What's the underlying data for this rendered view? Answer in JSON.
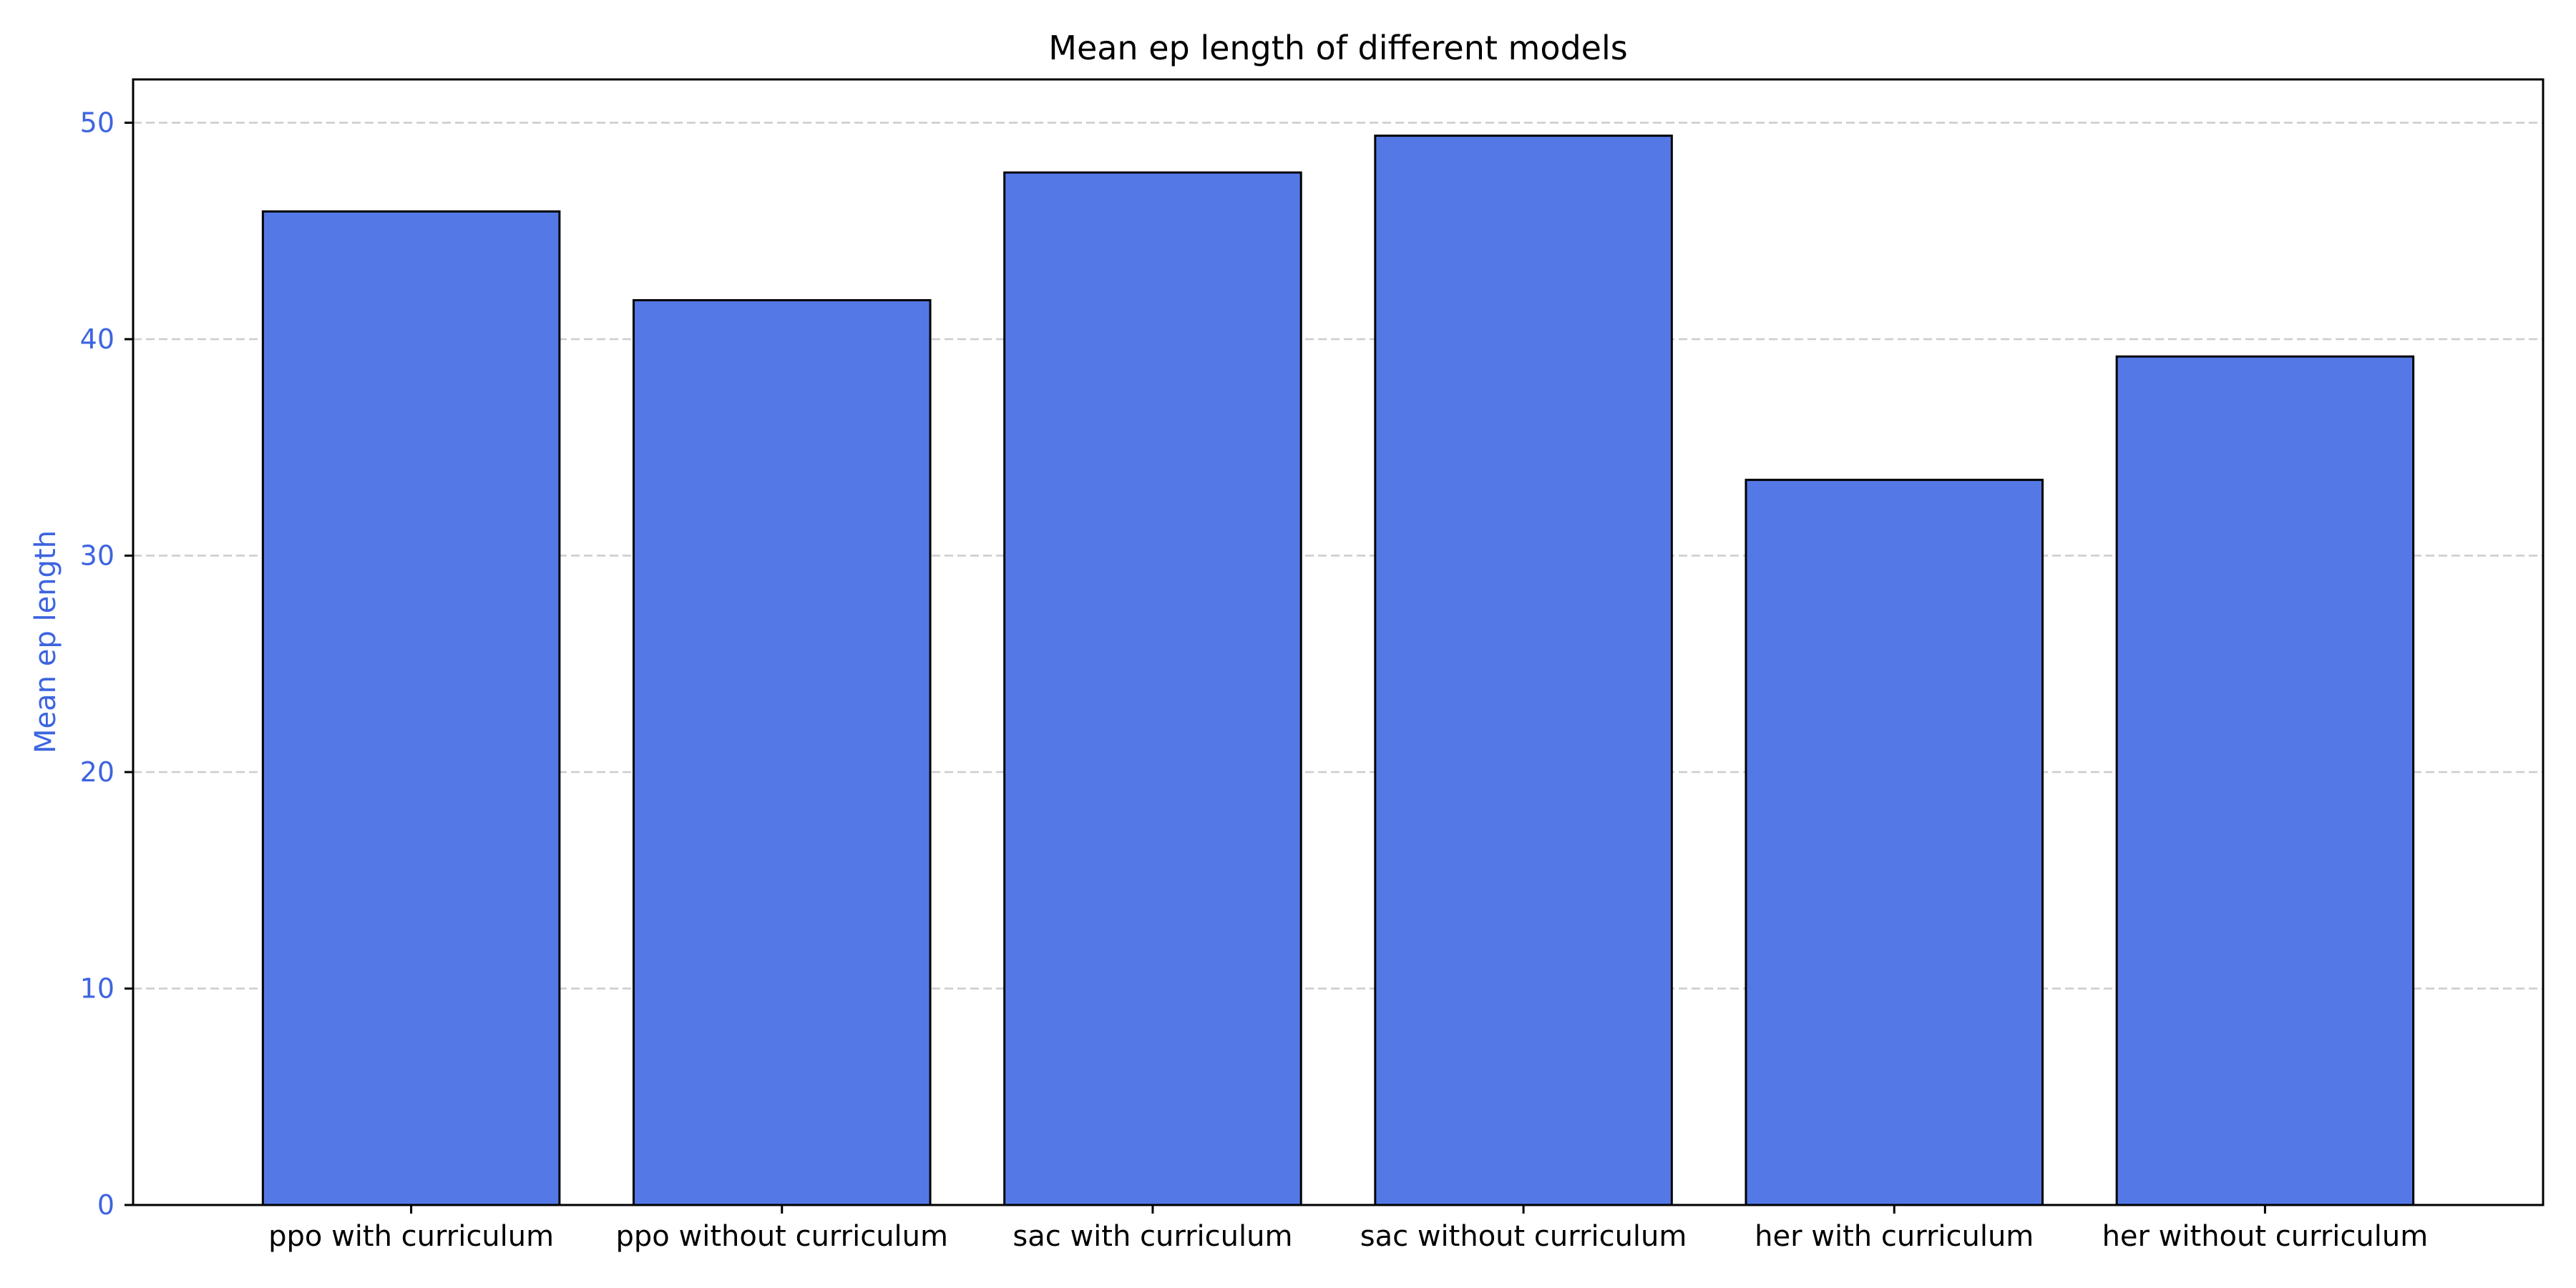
{
  "chart_data": {
    "type": "bar",
    "title": "Mean ep length of different models",
    "xlabel": "",
    "ylabel": "Mean ep length",
    "categories": [
      "ppo with curriculum",
      "ppo without curriculum",
      "sac with curriculum",
      "sac without curriculum",
      "her with curriculum",
      "her without curriculum"
    ],
    "values": [
      45.9,
      41.8,
      47.7,
      49.4,
      33.5,
      39.2
    ],
    "ylim": [
      0,
      52
    ],
    "yticks": [
      0,
      10,
      20,
      30,
      40,
      50
    ],
    "grid": "y, dashed",
    "colors": {
      "bar_fill": "#5479e6",
      "bar_edge": "#000000",
      "y_axis_text": "#3d64e0",
      "grid": "#cccccc"
    }
  }
}
